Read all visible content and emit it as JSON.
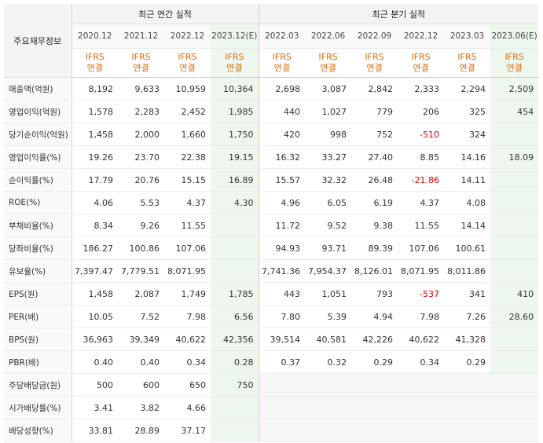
{
  "header": {
    "corner": "주요재무정보",
    "annual_group": "최근 연간 실적",
    "quarter_group": "최근 분기 실적",
    "periods": [
      "2020.12",
      "2021.12",
      "2022.12",
      "2023.12(E)",
      "2022.03",
      "2022.06",
      "2022.09",
      "2022.12",
      "2023.03",
      "2023.06(E)"
    ],
    "ifrs_label": "IFRS",
    "basis_label": "연결"
  },
  "rows": [
    {
      "label": "매출액(억원)",
      "values": [
        "8,192",
        "9,633",
        "10,959",
        "10,364",
        "2,698",
        "3,087",
        "2,842",
        "2,333",
        "2,294",
        "2,509"
      ]
    },
    {
      "label": "영업이익(억원)",
      "values": [
        "1,578",
        "2,283",
        "2,452",
        "1,985",
        "440",
        "1,027",
        "779",
        "206",
        "325",
        "454"
      ]
    },
    {
      "label": "당기순이익(억원)",
      "values": [
        "1,458",
        "2,000",
        "1,660",
        "1,750",
        "420",
        "998",
        "752",
        "-510",
        "324",
        ""
      ]
    },
    {
      "label": "영업이익률(%)",
      "values": [
        "19.26",
        "23.70",
        "22.38",
        "19.15",
        "16.32",
        "33.27",
        "27.40",
        "8.85",
        "14.16",
        "18.09"
      ]
    },
    {
      "label": "순이익률(%)",
      "values": [
        "17.79",
        "20.76",
        "15.15",
        "16.89",
        "15.57",
        "32.32",
        "26.48",
        "-21.86",
        "14.11",
        ""
      ]
    },
    {
      "label": "ROE(%)",
      "values": [
        "4.06",
        "5.53",
        "4.37",
        "4.30",
        "4.96",
        "6.05",
        "6.19",
        "4.37",
        "4.08",
        ""
      ]
    },
    {
      "label": "부채비율(%)",
      "values": [
        "8.34",
        "9.26",
        "11.55",
        "",
        "11.72",
        "9.52",
        "9.38",
        "11.55",
        "14.14",
        ""
      ]
    },
    {
      "label": "당좌비율(%)",
      "values": [
        "186.27",
        "100.86",
        "107.06",
        "",
        "94.93",
        "93.71",
        "89.39",
        "107.06",
        "100.61",
        ""
      ]
    },
    {
      "label": "유보율(%)",
      "values": [
        "7,397.47",
        "7,779.51",
        "8,071.95",
        "",
        "7,741.36",
        "7,954.37",
        "8,126.01",
        "8,071.95",
        "8,011.86",
        ""
      ]
    },
    {
      "label": "EPS(원)",
      "values": [
        "1,458",
        "2,087",
        "1,749",
        "1,785",
        "443",
        "1,051",
        "793",
        "-537",
        "341",
        "410"
      ]
    },
    {
      "label": "PER(배)",
      "values": [
        "10.05",
        "7.52",
        "7.98",
        "6.56",
        "7.80",
        "5.39",
        "4.94",
        "7.98",
        "7.26",
        "28.60"
      ]
    },
    {
      "label": "BPS(원)",
      "values": [
        "36,963",
        "39,349",
        "40,622",
        "42,356",
        "39,514",
        "40,581",
        "42,226",
        "40,622",
        "41,328",
        ""
      ]
    },
    {
      "label": "PBR(배)",
      "values": [
        "0.40",
        "0.40",
        "0.34",
        "0.28",
        "0.37",
        "0.32",
        "0.29",
        "0.34",
        "0.29",
        ""
      ]
    },
    {
      "label": "주당배당금(원)",
      "values": [
        "500",
        "600",
        "650",
        "750",
        "",
        "",
        "",
        "",
        "",
        ""
      ]
    },
    {
      "label": "시가배당률(%)",
      "values": [
        "3.41",
        "3.82",
        "4.66",
        "",
        "",
        "",
        "",
        "",
        "",
        ""
      ]
    },
    {
      "label": "배당성향(%)",
      "values": [
        "33.81",
        "28.89",
        "37.17",
        "",
        "",
        "",
        "",
        "",
        "",
        ""
      ]
    }
  ],
  "colors": {
    "ifrs": "#e26b0a",
    "negative": "#e00000",
    "estimate_bg": "#eef7ee"
  }
}
